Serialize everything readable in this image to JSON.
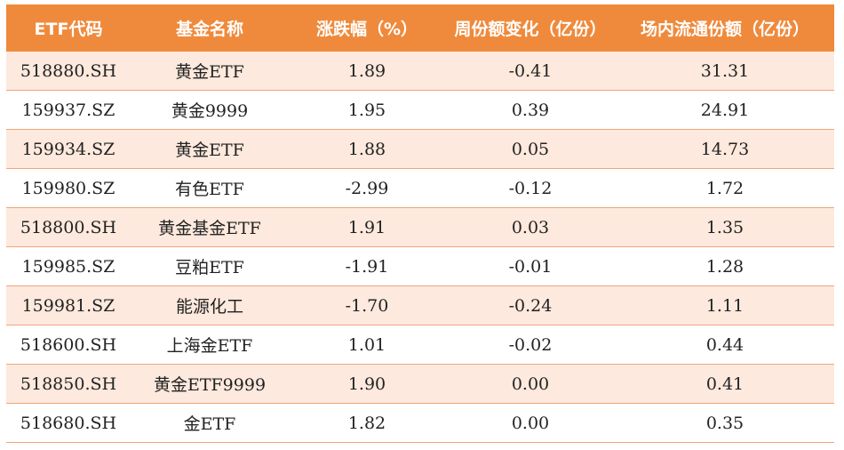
{
  "columns": [
    "ETF代码",
    "基金名称",
    "涨跌幅（%）",
    "周份额变化（亿份）",
    "场内流通份额（亿份）"
  ],
  "rows": [
    {
      "code": "518880.SH",
      "name": "黄金ETF",
      "change": "1.89",
      "weekly_share_change": "-0.41",
      "circulating_shares": "31.31"
    },
    {
      "code": "159937.SZ",
      "name": "黄金9999",
      "change": "1.95",
      "weekly_share_change": "0.39",
      "circulating_shares": "24.91"
    },
    {
      "code": "159934.SZ",
      "name": "黄金ETF",
      "change": "1.88",
      "weekly_share_change": "0.05",
      "circulating_shares": "14.73"
    },
    {
      "code": "159980.SZ",
      "name": "有色ETF",
      "change": "-2.99",
      "weekly_share_change": "-0.12",
      "circulating_shares": "1.72"
    },
    {
      "code": "518800.SH",
      "name": "黄金基金ETF",
      "change": "1.91",
      "weekly_share_change": "0.03",
      "circulating_shares": "1.35"
    },
    {
      "code": "159985.SZ",
      "name": "豆粕ETF",
      "change": "-1.91",
      "weekly_share_change": "-0.01",
      "circulating_shares": "1.28"
    },
    {
      "code": "159981.SZ",
      "name": "能源化工",
      "change": "-1.70",
      "weekly_share_change": "-0.24",
      "circulating_shares": "1.11"
    },
    {
      "code": "518600.SH",
      "name": "上海金ETF",
      "change": "1.01",
      "weekly_share_change": "-0.02",
      "circulating_shares": "0.44"
    },
    {
      "code": "518850.SH",
      "name": "黄金ETF9999",
      "change": "1.90",
      "weekly_share_change": "0.00",
      "circulating_shares": "0.41"
    },
    {
      "code": "518680.SH",
      "name": "金ETF",
      "change": "1.82",
      "weekly_share_change": "0.00",
      "circulating_shares": "0.35"
    }
  ],
  "colors": {
    "header_bg": "#ef8a3c",
    "header_text": "#ffffff",
    "stripe_bg": "#fde9dd",
    "row_border": "#f1a679"
  }
}
